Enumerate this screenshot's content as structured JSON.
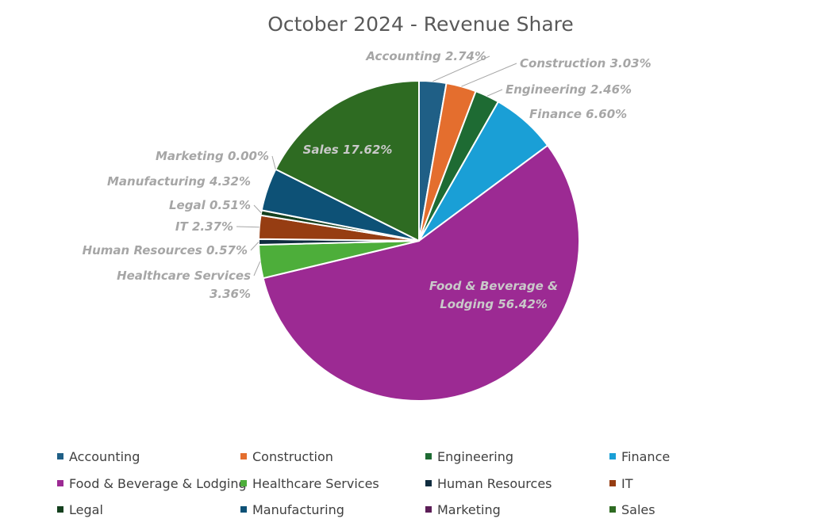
{
  "chart_data": {
    "type": "pie",
    "title": "October 2024 - Revenue Share",
    "categories": [
      "Accounting",
      "Construction",
      "Engineering",
      "Finance",
      "Food & Beverage & Lodging",
      "Healthcare Services",
      "Human Resources",
      "IT",
      "Legal",
      "Manufacturing",
      "Marketing",
      "Sales"
    ],
    "values": [
      2.74,
      3.03,
      2.46,
      6.6,
      56.42,
      3.36,
      0.57,
      2.37,
      0.51,
      4.32,
      0.0,
      17.62
    ],
    "unit": "%",
    "colors": [
      "#1f5f86",
      "#e46e2e",
      "#1e6b33",
      "#1a9fd6",
      "#9c2a93",
      "#4dae3a",
      "#0f2c3f",
      "#963d12",
      "#14401e",
      "#0d5176",
      "#5c1e57",
      "#2e6b22"
    ],
    "slice_labels": [
      [
        "Accounting 2.74%"
      ],
      [
        "Construction 3.03%"
      ],
      [
        "Engineering 2.46%"
      ],
      [
        "Finance 6.60%"
      ],
      [
        "Food & Beverage &",
        "Lodging 56.42%"
      ],
      [
        "Healthcare Services",
        "3.36%"
      ],
      [
        "Human Resources  0.57%"
      ],
      [
        "IT 2.37%"
      ],
      [
        "Legal 0.51%"
      ],
      [
        "Manufacturing 4.32%"
      ],
      [
        "Marketing 0.00%"
      ],
      [
        "Sales 17.62%"
      ]
    ],
    "legend_position": "bottom"
  }
}
